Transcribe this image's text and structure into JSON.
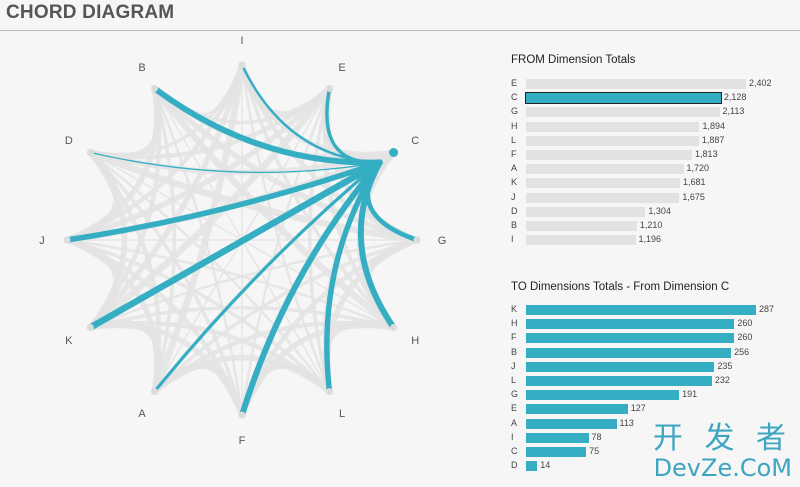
{
  "page": {
    "title": "CHORD DIAGRAM"
  },
  "colors": {
    "accent": "#35aec4",
    "chord_grey": "#e3e3e3",
    "node_grey": "#dcdcdc",
    "bar_grey": "#e2e2e2",
    "bar_highlight_outline": "#222222"
  },
  "chart_data": [
    {
      "type": "chord",
      "nodes": [
        "I",
        "E",
        "C",
        "G",
        "H",
        "L",
        "F",
        "A",
        "K",
        "J",
        "D",
        "B"
      ],
      "highlighted_node": "C",
      "highlighted_flows_to": [
        "C"
      ],
      "highlighted_flows": [
        {
          "from": "E",
          "to": "C",
          "value": 127
        },
        {
          "from": "I",
          "to": "C",
          "value": 78
        },
        {
          "from": "B",
          "to": "C",
          "value": 256
        },
        {
          "from": "D",
          "to": "C",
          "value": 14
        },
        {
          "from": "J",
          "to": "C",
          "value": 235
        },
        {
          "from": "K",
          "to": "C",
          "value": 287
        },
        {
          "from": "A",
          "to": "C",
          "value": 113
        },
        {
          "from": "F",
          "to": "C",
          "value": 260
        },
        {
          "from": "L",
          "to": "C",
          "value": 232
        },
        {
          "from": "H",
          "to": "C",
          "value": 260
        },
        {
          "from": "G",
          "to": "C",
          "value": 191
        }
      ]
    },
    {
      "type": "bar",
      "title": "FROM Dimension Totals",
      "categories": [
        "E",
        "C",
        "G",
        "H",
        "L",
        "F",
        "A",
        "K",
        "J",
        "D",
        "B",
        "I"
      ],
      "values": [
        2402,
        2128,
        2113,
        1894,
        1887,
        1813,
        1720,
        1681,
        1675,
        1304,
        1210,
        1196
      ],
      "value_labels": [
        "2,402",
        "2,128",
        "2,113",
        "1,894",
        "1,887",
        "1,813",
        "1,720",
        "1,681",
        "1,675",
        "1,304",
        "1,210",
        "1,196"
      ],
      "highlighted_category": "C",
      "xlim": [
        0,
        2402
      ]
    },
    {
      "type": "bar",
      "title": "TO Dimensions Totals - From Dimension C",
      "categories": [
        "K",
        "H",
        "F",
        "B",
        "J",
        "L",
        "G",
        "E",
        "A",
        "I",
        "C",
        "D"
      ],
      "values": [
        287,
        260,
        260,
        256,
        235,
        232,
        191,
        127,
        113,
        78,
        75,
        14
      ],
      "value_labels": [
        "287",
        "260",
        "260",
        "256",
        "235",
        "232",
        "191",
        "127",
        "113",
        "78",
        "75",
        "14"
      ],
      "xlim": [
        0,
        287
      ]
    }
  ],
  "watermark": {
    "line1": "开 发 者",
    "line2": "DevZe.CoM"
  }
}
